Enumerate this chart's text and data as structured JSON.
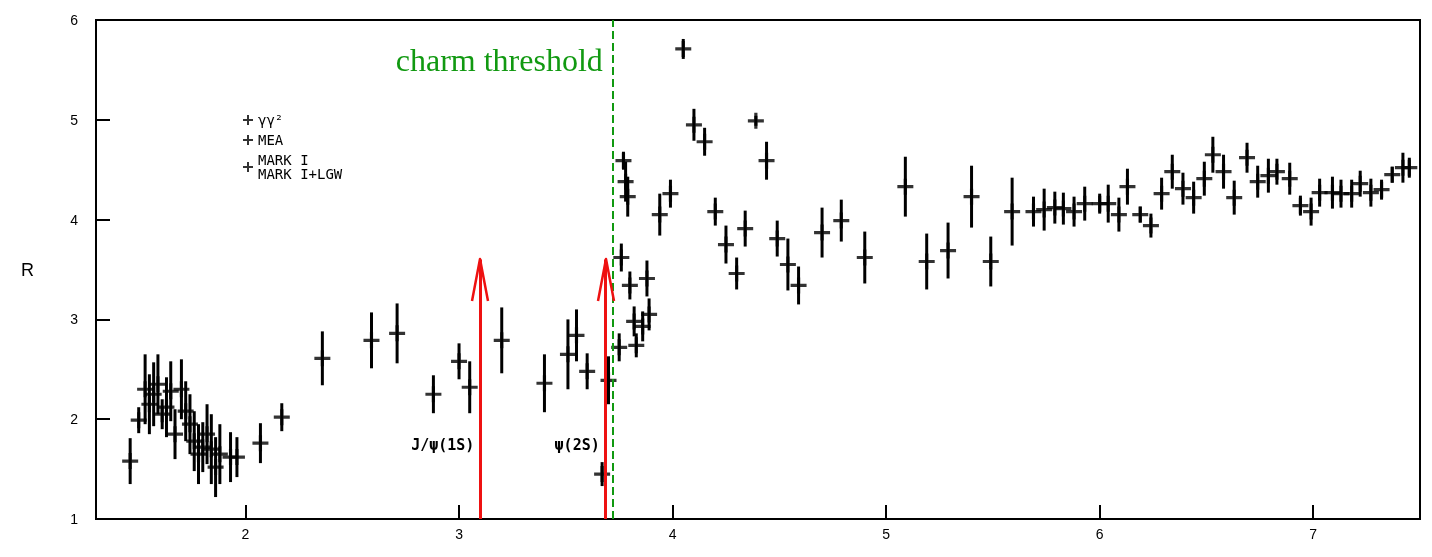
{
  "chart_data": {
    "type": "scatter",
    "ylabel": "R",
    "xlim": [
      1.3,
      7.5
    ],
    "xticks": [
      2,
      3,
      4,
      5,
      6,
      7
    ],
    "ylim": [
      1,
      6
    ],
    "yticks": [
      1,
      2,
      3,
      4,
      5,
      6
    ],
    "grid": false,
    "legend": "top left",
    "series": [
      {
        "name": "γγ²",
        "color": "#000000",
        "marker": "cross",
        "x": [
          1.46,
          1.5,
          1.53,
          1.55,
          1.57,
          1.59,
          1.61,
          1.63,
          1.65,
          1.67,
          1.7,
          1.72,
          1.74,
          1.76,
          1.78,
          1.8,
          1.82,
          1.84,
          1.86,
          1.88,
          1.93,
          1.96,
          2.07,
          2.17
        ],
        "values": [
          1.58,
          1.99,
          2.3,
          2.15,
          2.25,
          2.35,
          2.05,
          2.12,
          2.28,
          1.85,
          2.3,
          2.08,
          1.95,
          1.78,
          1.65,
          1.72,
          1.85,
          1.7,
          1.52,
          1.65,
          1.62,
          1.62,
          1.76,
          2.02
        ],
        "errors": [
          0.23,
          0.13,
          0.35,
          0.3,
          0.32,
          0.3,
          0.15,
          0.3,
          0.3,
          0.25,
          0.3,
          0.3,
          0.3,
          0.3,
          0.3,
          0.25,
          0.3,
          0.35,
          0.3,
          0.3,
          0.25,
          0.2,
          0.2,
          0.14
        ]
      },
      {
        "name": "MEA",
        "color": "#000000",
        "marker": "cross",
        "x": [
          2.36,
          2.59,
          2.71,
          2.88,
          3.67
        ],
        "values": [
          2.61,
          2.79,
          2.86,
          2.25,
          1.45
        ],
        "errors": [
          0.27,
          0.28,
          0.3,
          0.19,
          0.12
        ]
      },
      {
        "name": "MARK I\nMARK I+LGW",
        "color": "#000000",
        "marker": "cross",
        "x": [
          3.0,
          3.05,
          3.2,
          3.4,
          3.51,
          3.55,
          3.6,
          3.7,
          3.75,
          3.76,
          3.77,
          3.78,
          3.79,
          3.8,
          3.82,
          3.83,
          3.86,
          3.88,
          3.89,
          3.94,
          3.99,
          4.05,
          4.1,
          4.15,
          4.2,
          4.25,
          4.3,
          4.34,
          4.39,
          4.44,
          4.49,
          4.54,
          4.59,
          4.7,
          4.79,
          4.9,
          5.09,
          5.19,
          5.29,
          5.4,
          5.49,
          5.59,
          5.69,
          5.74,
          5.79,
          5.83,
          5.88,
          5.93,
          6.0,
          6.04,
          6.09,
          6.13,
          6.19,
          6.24,
          6.29,
          6.34,
          6.39,
          6.44,
          6.49,
          6.53,
          6.58,
          6.63,
          6.69,
          6.74,
          6.79,
          6.83,
          6.89,
          6.94,
          6.99,
          7.03,
          7.09,
          7.13,
          7.18,
          7.22,
          7.27,
          7.32,
          7.37,
          7.42,
          7.45
        ],
        "values": [
          2.58,
          2.32,
          2.79,
          2.36,
          2.65,
          2.84,
          2.48,
          2.39,
          2.72,
          3.62,
          4.59,
          4.38,
          4.23,
          3.34,
          2.98,
          2.74,
          2.93,
          3.41,
          3.05,
          4.05,
          4.26,
          5.71,
          4.95,
          4.78,
          4.08,
          3.75,
          3.46,
          3.91,
          4.99,
          4.59,
          3.81,
          3.55,
          3.34,
          3.87,
          3.99,
          3.62,
          4.33,
          3.58,
          3.69,
          4.23,
          3.58,
          4.08,
          4.08,
          4.1,
          4.12,
          4.11,
          4.08,
          4.16,
          4.16,
          4.16,
          4.05,
          4.33,
          4.05,
          3.94,
          4.26,
          4.48,
          4.31,
          4.22,
          4.41,
          4.65,
          4.48,
          4.22,
          4.62,
          4.38,
          4.44,
          4.48,
          4.41,
          4.14,
          4.08,
          4.27,
          4.27,
          4.26,
          4.26,
          4.36,
          4.27,
          4.3,
          4.45,
          4.52,
          4.52
        ],
        "errors": [
          0.18,
          0.26,
          0.33,
          0.29,
          0.35,
          0.26,
          0.18,
          0.24,
          0.14,
          0.14,
          0.09,
          0.2,
          0.2,
          0.14,
          0.15,
          0.12,
          0.15,
          0.18,
          0.16,
          0.21,
          0.14,
          0.1,
          0.16,
          0.14,
          0.14,
          0.19,
          0.16,
          0.18,
          0.05,
          0.19,
          0.18,
          0.26,
          0.19,
          0.25,
          0.21,
          0.26,
          0.3,
          0.28,
          0.28,
          0.31,
          0.25,
          0.34,
          0.15,
          0.21,
          0.16,
          0.16,
          0.15,
          0.17,
          0.1,
          0.19,
          0.17,
          0.18,
          0.08,
          0.12,
          0.16,
          0.17,
          0.16,
          0.16,
          0.17,
          0.18,
          0.17,
          0.17,
          0.15,
          0.16,
          0.17,
          0.13,
          0.16,
          0.1,
          0.14,
          0.14,
          0.16,
          0.14,
          0.14,
          0.13,
          0.14,
          0.1,
          0.08,
          0.15,
          0.1
        ]
      }
    ],
    "ref_lines": [
      {
        "axis": "x",
        "value": 3.72,
        "label": "charm threshold",
        "color": "#119911",
        "line_style": "dashed"
      },
      {
        "axis": "x",
        "value": 3.1,
        "label": "J/ψ(1S)",
        "color": "#ee1111",
        "line_style": "solid"
      },
      {
        "axis": "x",
        "value": 3.687,
        "label": "ψ(2S)",
        "color": "#ee1111",
        "line_style": "solid"
      }
    ]
  }
}
